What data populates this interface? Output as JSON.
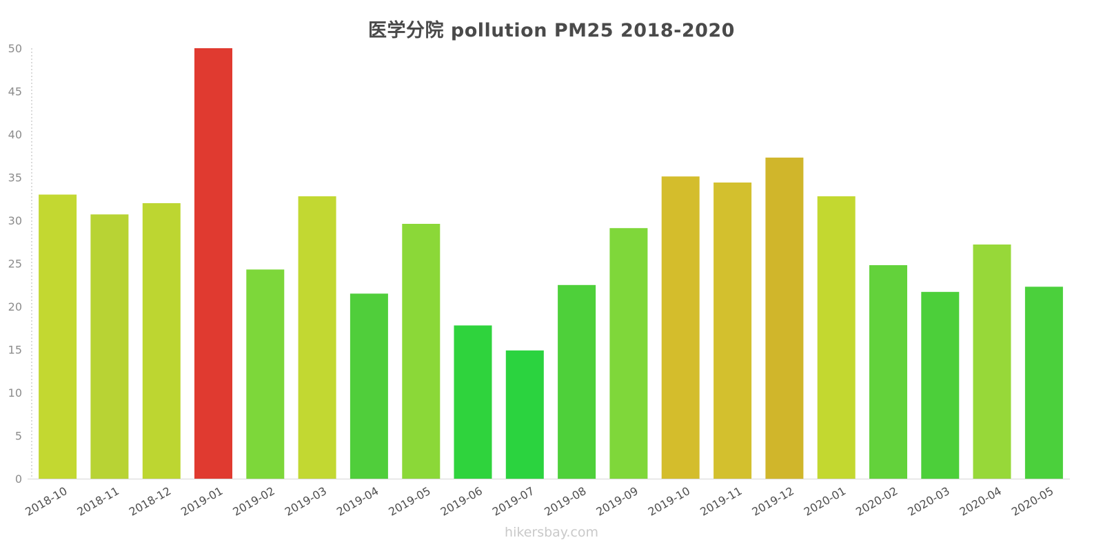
{
  "title": "医学分院 pollution PM25 2018-2020",
  "footer": "hikersbay.com",
  "chart_data": {
    "type": "bar",
    "title": "医学分院 pollution PM25 2018-2020",
    "xlabel": "",
    "ylabel": "",
    "ylim": [
      0,
      50
    ],
    "yticks": [
      0,
      5,
      10,
      15,
      20,
      25,
      30,
      35,
      40,
      45,
      50
    ],
    "grid": false,
    "legend": "none",
    "categories": [
      "2018-10",
      "2018-11",
      "2018-12",
      "2019-01",
      "2019-02",
      "2019-03",
      "2019-04",
      "2019-05",
      "2019-06",
      "2019-07",
      "2019-08",
      "2019-09",
      "2019-10",
      "2019-11",
      "2019-12",
      "2020-01",
      "2020-02",
      "2020-03",
      "2020-04",
      "2020-05"
    ],
    "values": [
      33.0,
      30.7,
      32.0,
      50.0,
      24.3,
      32.8,
      21.5,
      29.6,
      17.8,
      14.9,
      22.5,
      29.1,
      35.1,
      34.4,
      37.3,
      32.8,
      24.8,
      21.7,
      27.2,
      22.3
    ],
    "colors": [
      "#c3d831",
      "#b8d334",
      "#bdd631",
      "#e03a30",
      "#7dd73a",
      "#c2d832",
      "#50ce3b",
      "#8bd838",
      "#2fd33d",
      "#2bd33f",
      "#4ed03a",
      "#7fd73a",
      "#d4bd2c",
      "#d3c02e",
      "#d0b62b",
      "#c3d830",
      "#63d23b",
      "#4ccf3a",
      "#97d839",
      "#4bd03c"
    ],
    "watermark": "hikersbay.com"
  }
}
